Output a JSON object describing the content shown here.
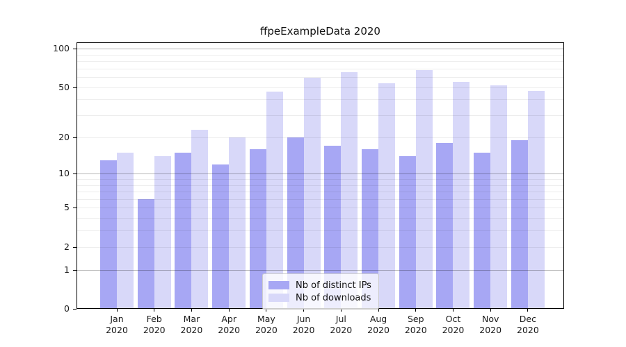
{
  "title": "ffpeExampleData 2020",
  "chart_data": {
    "type": "bar",
    "title": "ffpeExampleData 2020",
    "categories": [
      "Jan",
      "Feb",
      "Mar",
      "Apr",
      "May",
      "Jun",
      "Jul",
      "Aug",
      "Sep",
      "Oct",
      "Nov",
      "Dec"
    ],
    "category_year": "2020",
    "series": [
      {
        "name": "Nb of distinct IPs",
        "color": "#a7a7f4",
        "values": [
          13,
          6,
          15,
          12,
          16,
          20,
          17,
          16,
          14,
          18,
          15,
          19
        ]
      },
      {
        "name": "Nb of downloads",
        "color": "#d8d8f9",
        "values": [
          15,
          14,
          23,
          20,
          46,
          59,
          66,
          54,
          68,
          55,
          52,
          47
        ]
      }
    ],
    "xlabel": "",
    "ylabel": "",
    "ylim": [
      0,
      100
    ],
    "y_scale": "log10(value+1)",
    "y_tick_values": [
      0,
      1,
      2,
      5,
      10,
      20,
      50,
      100
    ],
    "y_tick_labels": [
      "0",
      "1",
      "2",
      "5",
      "10",
      "20",
      "50",
      "100"
    ],
    "grid": "on",
    "minor_gridline_values": [
      2,
      3,
      4,
      5,
      6,
      7,
      8,
      9,
      20,
      30,
      40,
      50,
      60,
      70,
      80,
      90
    ],
    "major_gridline_values": [
      1,
      10,
      100
    ],
    "legend_position": "bottom-center"
  },
  "legend": {
    "entries": [
      "Nb of distinct IPs",
      "Nb of downloads"
    ]
  },
  "colors": {
    "distinct_ips_bar": "#a7a7f4",
    "downloads_bar": "#d8d8f9",
    "frame": "#000000",
    "background": "#ffffff"
  }
}
